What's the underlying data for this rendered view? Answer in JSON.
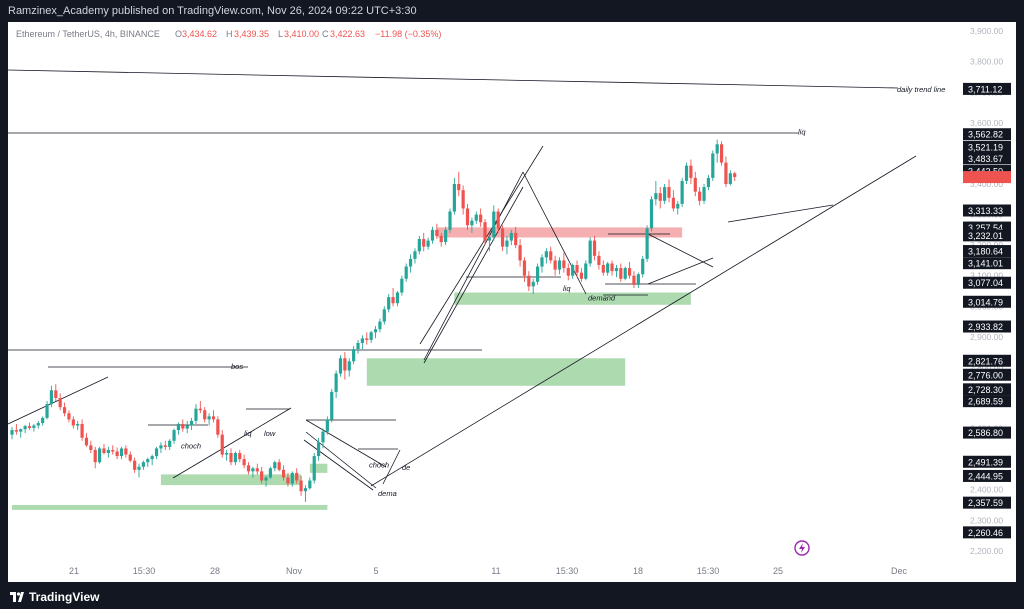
{
  "header": {
    "publisher": "Ramzinex_Academy published on TradingView.com, Nov 26, 2024 09:22 UTC+3:30"
  },
  "footer": {
    "brand": "TradingView"
  },
  "colors": {
    "up": "#26a69a",
    "down": "#ef5350",
    "supply": "#f4a6a9",
    "demand": "#a5d6a7",
    "last_price": "#ef5350",
    "text": "#131722",
    "axis_text": "#b2b5be",
    "frame": "#131722"
  },
  "legend": {
    "symbol": "Ethereum / TetherUS, 4h, BINANCE",
    "open_label": "O",
    "open": "3,434.62",
    "high_label": "H",
    "high": "3,439.35",
    "low_label": "L",
    "low": "3,410.00",
    "close_label": "C",
    "close": "3,422.63",
    "change": "−11.98 (−0.35%)"
  },
  "chart_data": {
    "type": "candlestick",
    "symbol": "ETHUSDT",
    "timeframe": "4h",
    "x_tick_labels": [
      "21",
      "15:30",
      "28",
      "Nov",
      "5",
      "11",
      "15:30",
      "18",
      "15:30",
      "25",
      "Dec"
    ],
    "y_tick_labels": [
      2200,
      2300,
      2400,
      2500,
      2600,
      2700,
      2800,
      2900,
      3000,
      3100,
      3200,
      3300,
      3400,
      3500,
      3600,
      3700,
      3800,
      3900
    ],
    "ylim": [
      2170,
      3930
    ],
    "price_tags": [
      "3,711.12",
      "3,562.82",
      "3,521.19",
      "3,483.67",
      "3,442.50",
      "3,313.33",
      "3,257.54",
      "3,232.01",
      "3,180.64",
      "3,141.01",
      "3,077.04",
      "3,014.79",
      "2,933.82",
      "2,821.76",
      "2,776.00",
      "2,728.30",
      "2,689.59",
      "2,586.80",
      "2,491.39",
      "2,444.95",
      "2,357.59",
      "2,260.46"
    ],
    "price_tag_values": [
      3711.12,
      3562.82,
      3521.19,
      3483.67,
      3442.5,
      3313.33,
      3257.54,
      3232.01,
      3180.64,
      3141.01,
      3077.04,
      3014.79,
      2933.82,
      2821.76,
      2776.0,
      2728.3,
      2689.59,
      2586.8,
      2491.39,
      2444.95,
      2357.59,
      2260.46
    ],
    "last_price": 3422.63,
    "candles": [
      [
        2580,
        2605,
        2565,
        2595
      ],
      [
        2595,
        2615,
        2580,
        2590
      ],
      [
        2590,
        2600,
        2570,
        2598
      ],
      [
        2598,
        2612,
        2585,
        2608
      ],
      [
        2608,
        2620,
        2596,
        2602
      ],
      [
        2602,
        2615,
        2590,
        2610
      ],
      [
        2610,
        2625,
        2600,
        2618
      ],
      [
        2618,
        2640,
        2610,
        2635
      ],
      [
        2635,
        2690,
        2630,
        2680
      ],
      [
        2680,
        2740,
        2670,
        2725
      ],
      [
        2725,
        2745,
        2690,
        2700
      ],
      [
        2700,
        2715,
        2660,
        2670
      ],
      [
        2670,
        2685,
        2640,
        2650
      ],
      [
        2650,
        2660,
        2620,
        2630
      ],
      [
        2630,
        2640,
        2600,
        2610
      ],
      [
        2610,
        2625,
        2595,
        2615
      ],
      [
        2615,
        2630,
        2560,
        2570
      ],
      [
        2570,
        2585,
        2540,
        2545
      ],
      [
        2545,
        2560,
        2520,
        2530
      ],
      [
        2530,
        2540,
        2470,
        2490
      ],
      [
        2490,
        2540,
        2485,
        2535
      ],
      [
        2535,
        2550,
        2515,
        2520
      ],
      [
        2520,
        2540,
        2505,
        2530
      ],
      [
        2530,
        2545,
        2515,
        2525
      ],
      [
        2525,
        2538,
        2500,
        2510
      ],
      [
        2510,
        2540,
        2500,
        2535
      ],
      [
        2535,
        2545,
        2505,
        2515
      ],
      [
        2515,
        2525,
        2490,
        2495
      ],
      [
        2495,
        2505,
        2455,
        2465
      ],
      [
        2465,
        2485,
        2440,
        2475
      ],
      [
        2475,
        2495,
        2465,
        2490
      ],
      [
        2490,
        2505,
        2475,
        2500
      ],
      [
        2500,
        2515,
        2480,
        2510
      ],
      [
        2510,
        2540,
        2500,
        2535
      ],
      [
        2535,
        2555,
        2520,
        2545
      ],
      [
        2545,
        2560,
        2530,
        2540
      ],
      [
        2540,
        2565,
        2530,
        2560
      ],
      [
        2560,
        2600,
        2550,
        2595
      ],
      [
        2595,
        2620,
        2580,
        2615
      ],
      [
        2615,
        2630,
        2590,
        2600
      ],
      [
        2600,
        2625,
        2585,
        2610
      ],
      [
        2610,
        2635,
        2595,
        2625
      ],
      [
        2625,
        2680,
        2615,
        2665
      ],
      [
        2665,
        2690,
        2650,
        2660
      ],
      [
        2660,
        2670,
        2620,
        2630
      ],
      [
        2630,
        2650,
        2610,
        2640
      ],
      [
        2640,
        2660,
        2620,
        2630
      ],
      [
        2630,
        2640,
        2570,
        2580
      ],
      [
        2580,
        2595,
        2505,
        2515
      ],
      [
        2515,
        2530,
        2495,
        2520
      ],
      [
        2520,
        2535,
        2480,
        2490
      ],
      [
        2490,
        2525,
        2480,
        2520
      ],
      [
        2520,
        2530,
        2490,
        2500
      ],
      [
        2500,
        2515,
        2470,
        2480
      ],
      [
        2480,
        2490,
        2450,
        2460
      ],
      [
        2460,
        2475,
        2440,
        2470
      ],
      [
        2470,
        2485,
        2450,
        2460
      ],
      [
        2460,
        2475,
        2420,
        2430
      ],
      [
        2430,
        2445,
        2410,
        2440
      ],
      [
        2440,
        2475,
        2435,
        2470
      ],
      [
        2470,
        2495,
        2460,
        2490
      ],
      [
        2490,
        2500,
        2460,
        2465
      ],
      [
        2465,
        2480,
        2430,
        2440
      ],
      [
        2440,
        2455,
        2410,
        2420
      ],
      [
        2420,
        2460,
        2410,
        2455
      ],
      [
        2455,
        2470,
        2420,
        2430
      ],
      [
        2430,
        2445,
        2380,
        2395
      ],
      [
        2395,
        2415,
        2360,
        2405
      ],
      [
        2405,
        2440,
        2400,
        2430
      ],
      [
        2430,
        2520,
        2420,
        2510
      ],
      [
        2510,
        2570,
        2495,
        2555
      ],
      [
        2555,
        2600,
        2535,
        2590
      ],
      [
        2590,
        2640,
        2580,
        2630
      ],
      [
        2630,
        2730,
        2620,
        2720
      ],
      [
        2720,
        2790,
        2700,
        2780
      ],
      [
        2780,
        2840,
        2770,
        2830
      ],
      [
        2830,
        2850,
        2760,
        2790
      ],
      [
        2790,
        2830,
        2770,
        2820
      ],
      [
        2820,
        2870,
        2810,
        2860
      ],
      [
        2860,
        2890,
        2845,
        2880
      ],
      [
        2880,
        2905,
        2860,
        2895
      ],
      [
        2895,
        2915,
        2875,
        2890
      ],
      [
        2890,
        2920,
        2880,
        2915
      ],
      [
        2915,
        2935,
        2895,
        2925
      ],
      [
        2925,
        2960,
        2915,
        2950
      ],
      [
        2950,
        3000,
        2940,
        2990
      ],
      [
        2990,
        3040,
        2980,
        3030
      ],
      [
        3030,
        3060,
        3000,
        3010
      ],
      [
        3010,
        3050,
        3000,
        3045
      ],
      [
        3045,
        3100,
        3035,
        3090
      ],
      [
        3090,
        3140,
        3080,
        3130
      ],
      [
        3130,
        3170,
        3110,
        3155
      ],
      [
        3155,
        3190,
        3140,
        3180
      ],
      [
        3180,
        3230,
        3170,
        3220
      ],
      [
        3220,
        3240,
        3180,
        3195
      ],
      [
        3195,
        3225,
        3185,
        3215
      ],
      [
        3215,
        3260,
        3205,
        3250
      ],
      [
        3250,
        3270,
        3220,
        3230
      ],
      [
        3230,
        3240,
        3195,
        3210
      ],
      [
        3210,
        3260,
        3200,
        3250
      ],
      [
        3250,
        3320,
        3240,
        3310
      ],
      [
        3310,
        3420,
        3300,
        3400
      ],
      [
        3400,
        3440,
        3360,
        3380
      ],
      [
        3380,
        3395,
        3300,
        3320
      ],
      [
        3320,
        3335,
        3250,
        3265
      ],
      [
        3265,
        3290,
        3240,
        3280
      ],
      [
        3280,
        3310,
        3270,
        3300
      ],
      [
        3300,
        3320,
        3260,
        3275
      ],
      [
        3275,
        3285,
        3200,
        3215
      ],
      [
        3215,
        3240,
        3180,
        3225
      ],
      [
        3225,
        3330,
        3215,
        3310
      ],
      [
        3310,
        3320,
        3240,
        3255
      ],
      [
        3255,
        3265,
        3180,
        3195
      ],
      [
        3195,
        3230,
        3170,
        3215
      ],
      [
        3215,
        3250,
        3200,
        3240
      ],
      [
        3240,
        3260,
        3190,
        3200
      ],
      [
        3200,
        3220,
        3130,
        3150
      ],
      [
        3150,
        3160,
        3080,
        3100
      ],
      [
        3100,
        3115,
        3050,
        3065
      ],
      [
        3065,
        3090,
        3040,
        3080
      ],
      [
        3080,
        3140,
        3070,
        3130
      ],
      [
        3130,
        3170,
        3110,
        3160
      ],
      [
        3160,
        3190,
        3140,
        3180
      ],
      [
        3180,
        3195,
        3140,
        3150
      ],
      [
        3150,
        3165,
        3100,
        3120
      ],
      [
        3120,
        3160,
        3105,
        3150
      ],
      [
        3150,
        3175,
        3110,
        3125
      ],
      [
        3125,
        3140,
        3085,
        3100
      ],
      [
        3100,
        3140,
        3090,
        3135
      ],
      [
        3135,
        3150,
        3095,
        3110
      ],
      [
        3110,
        3125,
        3080,
        3090
      ],
      [
        3090,
        3150,
        3085,
        3140
      ],
      [
        3140,
        3225,
        3130,
        3215
      ],
      [
        3215,
        3230,
        3150,
        3165
      ],
      [
        3165,
        3180,
        3120,
        3135
      ],
      [
        3135,
        3150,
        3100,
        3110
      ],
      [
        3110,
        3145,
        3100,
        3140
      ],
      [
        3140,
        3150,
        3100,
        3115
      ],
      [
        3115,
        3135,
        3095,
        3125
      ],
      [
        3125,
        3140,
        3080,
        3090
      ],
      [
        3090,
        3130,
        3085,
        3125
      ],
      [
        3125,
        3145,
        3090,
        3100
      ],
      [
        3100,
        3115,
        3060,
        3070
      ],
      [
        3070,
        3110,
        3060,
        3105
      ],
      [
        3105,
        3165,
        3095,
        3155
      ],
      [
        3155,
        3265,
        3145,
        3255
      ],
      [
        3255,
        3360,
        3245,
        3350
      ],
      [
        3350,
        3410,
        3330,
        3370
      ],
      [
        3370,
        3390,
        3320,
        3345
      ],
      [
        3345,
        3400,
        3335,
        3390
      ],
      [
        3390,
        3415,
        3340,
        3355
      ],
      [
        3355,
        3380,
        3310,
        3320
      ],
      [
        3320,
        3345,
        3300,
        3335
      ],
      [
        3335,
        3420,
        3325,
        3410
      ],
      [
        3410,
        3470,
        3400,
        3460
      ],
      [
        3460,
        3480,
        3400,
        3420
      ],
      [
        3420,
        3440,
        3360,
        3375
      ],
      [
        3375,
        3390,
        3330,
        3345
      ],
      [
        3345,
        3400,
        3335,
        3390
      ],
      [
        3390,
        3430,
        3380,
        3420
      ],
      [
        3420,
        3510,
        3410,
        3500
      ],
      [
        3500,
        3545,
        3470,
        3530
      ],
      [
        3530,
        3540,
        3460,
        3470
      ],
      [
        3470,
        3490,
        3390,
        3400
      ],
      [
        3400,
        3445,
        3395,
        3435
      ],
      [
        3435,
        3440,
        3410,
        3423
      ]
    ],
    "zones": [
      {
        "kind": "supply",
        "from_index": 97,
        "to_index": 153,
        "low": 3225,
        "high": 3258
      },
      {
        "kind": "demand",
        "from_index": 101,
        "to_index": 155,
        "low": 3005,
        "high": 3045
      },
      {
        "kind": "demand",
        "from_index": 81,
        "to_index": 140,
        "low": 2740,
        "high": 2830
      },
      {
        "kind": "demand",
        "from_index": 34,
        "to_index": 66,
        "low": 2415,
        "high": 2450
      },
      {
        "kind": "demand",
        "from_index": 68,
        "to_index": 72,
        "low": 2455,
        "high": 2485
      },
      {
        "kind": "demand",
        "from_index": 0,
        "to_index": 72,
        "low": 2334,
        "high": 2350
      }
    ],
    "annotations": [
      {
        "text": "daily trend line",
        "value": 3711.12
      },
      {
        "text": "liq",
        "value": 3572
      },
      {
        "text": "bos",
        "value": 2805
      },
      {
        "text": "choch",
        "value": 2545
      },
      {
        "text": "liq",
        "value": 2585
      },
      {
        "text": "low",
        "value": 2585
      },
      {
        "text": "choch",
        "value": 2482
      },
      {
        "text": "de",
        "value": 2475
      },
      {
        "text": "dema",
        "value": 2390
      },
      {
        "text": "liq",
        "value": 3060
      },
      {
        "text": "demand",
        "value": 3028
      }
    ],
    "grid": false
  }
}
